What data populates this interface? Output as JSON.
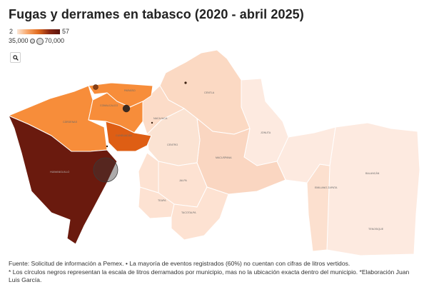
{
  "title": "Fugas y derrames en tabasco (2020 - abril 2025)",
  "legend": {
    "color_min": "2",
    "color_max": "57",
    "size_small": "35,000",
    "size_large": "70,000",
    "ramp_colors": [
      "#fbe6d6",
      "#f7a466",
      "#e06a1e",
      "#8a2712",
      "#5a130c"
    ]
  },
  "search_button": {
    "icon": "search-icon"
  },
  "map": {
    "municipalities": [
      {
        "name": "CÁRDENAS",
        "color": "#f78d3a"
      },
      {
        "name": "PARAÍSO",
        "color": "#f78d3a"
      },
      {
        "name": "COMALCALCO",
        "color": "#f78d3a"
      },
      {
        "name": "CUNDUACÁN",
        "color": "#de5e14"
      },
      {
        "name": "HUIMANGUILLO",
        "color": "#6a1a0e"
      },
      {
        "name": "CENTLA",
        "color": "#fbd9c3"
      },
      {
        "name": "JONUTA",
        "color": "#fdeae0"
      },
      {
        "name": "NACAJUCA",
        "color": "#fcdcc8"
      },
      {
        "name": "CENTRO",
        "color": "#fbe3d3"
      },
      {
        "name": "MACUSPANA",
        "color": "#fad6c1"
      },
      {
        "name": "JALPA",
        "color": "#fde2d2"
      },
      {
        "name": "TEAPA",
        "color": "#fde2d2"
      },
      {
        "name": "TACOTALPA",
        "color": "#fde2d2"
      },
      {
        "name": "BALANCÁN",
        "color": "#fdeae0"
      },
      {
        "name": "EMILIANO ZAPATA",
        "color": "#fce0cf"
      },
      {
        "name": "TENOSIQUE",
        "color": "#fdeae0"
      }
    ]
  },
  "footer": {
    "line1": "Fuente: Solicitud de información a Pemex. • La mayoría de eventos registrados (60%) no cuentan con cifras de litros vertidos.",
    "line2": "* Los círculos negros representan la escala de litros derramados por municipio, mas no la ubicación exacta dentro del municipio. *Elaboración Juan Luis García."
  }
}
